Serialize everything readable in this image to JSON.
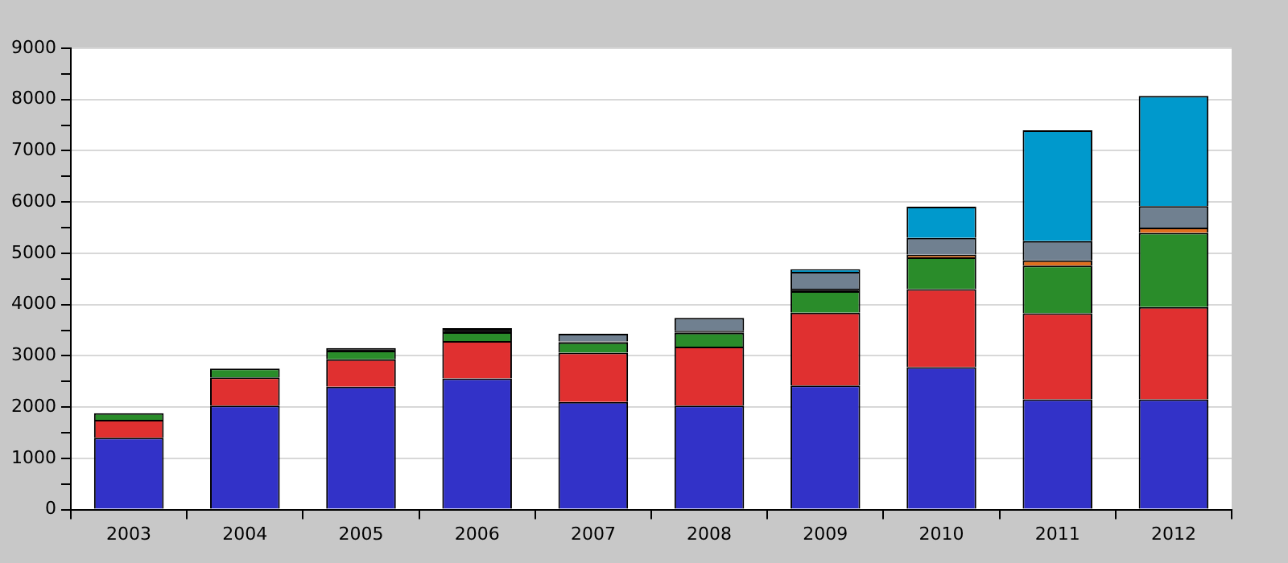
{
  "chart_data": {
    "type": "bar",
    "stacked": true,
    "categories": [
      "2003",
      "2004",
      "2005",
      "2006",
      "2007",
      "2008",
      "2009",
      "2010",
      "2011",
      "2012"
    ],
    "series": [
      {
        "color": "#3232c8",
        "values": [
          1400,
          2030,
          2400,
          2560,
          2100,
          2030,
          2420,
          2780,
          2150,
          2150
        ]
      },
      {
        "color": "#e03030",
        "values": [
          350,
          550,
          530,
          730,
          960,
          1150,
          1420,
          1520,
          1680,
          1800
        ]
      },
      {
        "color": "#2a8c2a",
        "values": [
          130,
          170,
          170,
          170,
          200,
          270,
          420,
          620,
          930,
          1450
        ]
      },
      {
        "color": "#111111",
        "values": [
          null,
          null,
          50,
          80,
          20,
          40,
          50,
          null,
          null,
          null
        ]
      },
      {
        "color": "#e07020",
        "values": [
          null,
          null,
          null,
          null,
          null,
          null,
          null,
          50,
          100,
          100
        ]
      },
      {
        "color": "#708090",
        "values": [
          null,
          null,
          null,
          null,
          150,
          250,
          330,
          330,
          380,
          420
        ]
      },
      {
        "color": "#0099cc",
        "values": [
          null,
          null,
          null,
          null,
          null,
          null,
          50,
          610,
          2160,
          2150
        ]
      }
    ],
    "ylim": [
      0,
      9000
    ],
    "yticks": [
      0,
      {
        "value": 500,
        "label": null
      },
      1000,
      {
        "value": 1500,
        "label": null
      },
      2000,
      {
        "value": 2500,
        "label": null
      },
      3000,
      {
        "value": 3500,
        "label": null
      },
      4000,
      {
        "value": 4500,
        "label": null
      },
      5000,
      {
        "value": 5500,
        "label": null
      },
      6000,
      {
        "value": 6500,
        "label": null
      },
      7000,
      {
        "value": 7500,
        "label": null
      },
      8000,
      {
        "value": 8500,
        "label": null
      },
      9000
    ],
    "grid": "y",
    "legend": false
  }
}
